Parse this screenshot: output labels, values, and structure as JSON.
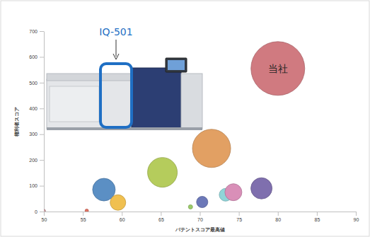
{
  "chart_data": {
    "type": "bubble",
    "xlabel": "パテントスコア最高値",
    "ylabel": "権利者スコア",
    "x": [
      50,
      55.5,
      57.7,
      59.5,
      65.2,
      68.8,
      70.3,
      71.5,
      73.3,
      74.3,
      77.9,
      80
    ],
    "values": [
      2,
      3,
      85,
      35,
      152,
      18,
      37,
      245,
      65,
      75,
      90,
      555
    ],
    "sizes": [
      6,
      6,
      256,
      121,
      441,
      9,
      64,
      729,
      81,
      144,
      225,
      1444
    ],
    "colors": [
      "#c9a0a4",
      "#e07060",
      "#5b8fc4",
      "#f0c050",
      "#b5cc5c",
      "#9ccc6a",
      "#6c78b8",
      "#e2a063",
      "#8fd4d8",
      "#d98fb8",
      "#7f6fae",
      "#d07a80"
    ],
    "point_labels": [
      null,
      null,
      null,
      null,
      null,
      null,
      null,
      null,
      null,
      null,
      null,
      "当社"
    ],
    "xlim": [
      50,
      90
    ],
    "ylim": [
      0,
      700
    ],
    "xticks": [
      50,
      55,
      60,
      65,
      70,
      75,
      80,
      85,
      90
    ],
    "yticks": [
      0,
      100,
      200,
      300,
      400,
      500,
      600,
      700
    ],
    "annotations": [
      {
        "text": "IQ-501"
      }
    ],
    "grid": false
  }
}
